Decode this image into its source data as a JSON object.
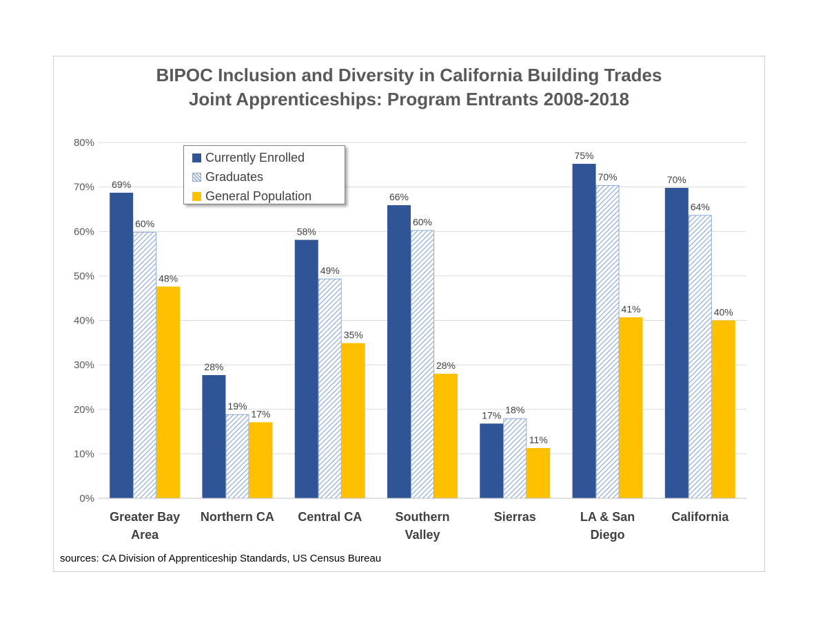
{
  "chart_data": {
    "type": "bar",
    "title": "BIPOC Inclusion and Diversity in California Building Trades",
    "subtitle": "Joint Apprenticeships: Program Entrants 2008-2018",
    "categories": [
      [
        "Greater Bay",
        "Area"
      ],
      [
        "Northern CA"
      ],
      [
        "Central CA"
      ],
      [
        "Southern",
        "Valley"
      ],
      [
        "Sierras"
      ],
      [
        "LA & San",
        "Diego"
      ],
      [
        "California"
      ]
    ],
    "series": [
      {
        "name": "Currently Enrolled",
        "color": "#2f5597",
        "pattern": "solid",
        "values": [
          68.7,
          27.7,
          58.1,
          65.9,
          16.8,
          75.2,
          69.8
        ],
        "labels": [
          "69%",
          "28%",
          "58%",
          "66%",
          "17%",
          "75%",
          "70%"
        ]
      },
      {
        "name": "Graduates",
        "color": "#8faadc",
        "pattern": "hatch",
        "values": [
          59.9,
          18.9,
          49.4,
          60.3,
          18.0,
          70.4,
          63.7
        ],
        "labels": [
          "60%",
          "19%",
          "49%",
          "60%",
          "18%",
          "70%",
          "64%"
        ]
      },
      {
        "name": "General Population",
        "color": "#ffc000",
        "pattern": "solid",
        "values": [
          47.6,
          17.1,
          34.9,
          28.0,
          11.3,
          40.7,
          40.0
        ],
        "labels": [
          "48%",
          "17%",
          "35%",
          "28%",
          "11%",
          "41%",
          "40%"
        ]
      }
    ],
    "ylim": [
      0,
      80
    ],
    "yticks": [
      0,
      10,
      20,
      30,
      40,
      50,
      60,
      70,
      80
    ],
    "ytick_labels": [
      "0%",
      "10%",
      "20%",
      "30%",
      "40%",
      "50%",
      "60%",
      "70%",
      "80%"
    ],
    "grid": true,
    "legend_position": "top-left"
  },
  "source_note": "sources: CA Division of Apprenticeship Standards, US Census Bureau"
}
